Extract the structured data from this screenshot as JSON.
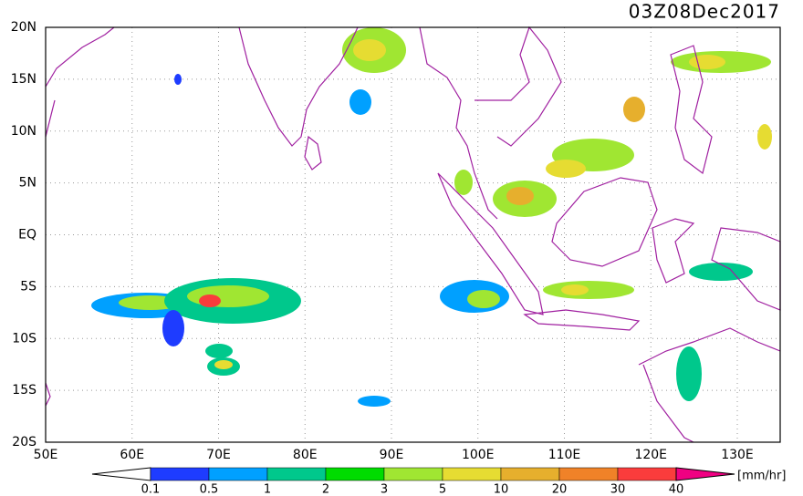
{
  "map": {
    "title": "03Z08Dec2017",
    "lat_labels": [
      "20N",
      "15N",
      "10N",
      "5N",
      "EQ",
      "5S",
      "10S",
      "15S",
      "20S"
    ],
    "lon_labels": [
      "50E",
      "60E",
      "70E",
      "80E",
      "90E",
      "100E",
      "110E",
      "120E",
      "130E"
    ],
    "colorbar": {
      "levels": [
        0.1,
        0.5,
        1,
        2,
        3,
        5,
        10,
        20,
        30,
        40
      ],
      "under_color": "#ffffff",
      "colors": [
        "#1e3cff",
        "#00a0ff",
        "#00c88c",
        "#00dc00",
        "#a0e632",
        "#e6dc32",
        "#e6af2d",
        "#f08228",
        "#fa3c3c"
      ],
      "over_color": "#f00082",
      "unit": "[mm/hr]"
    }
  }
}
